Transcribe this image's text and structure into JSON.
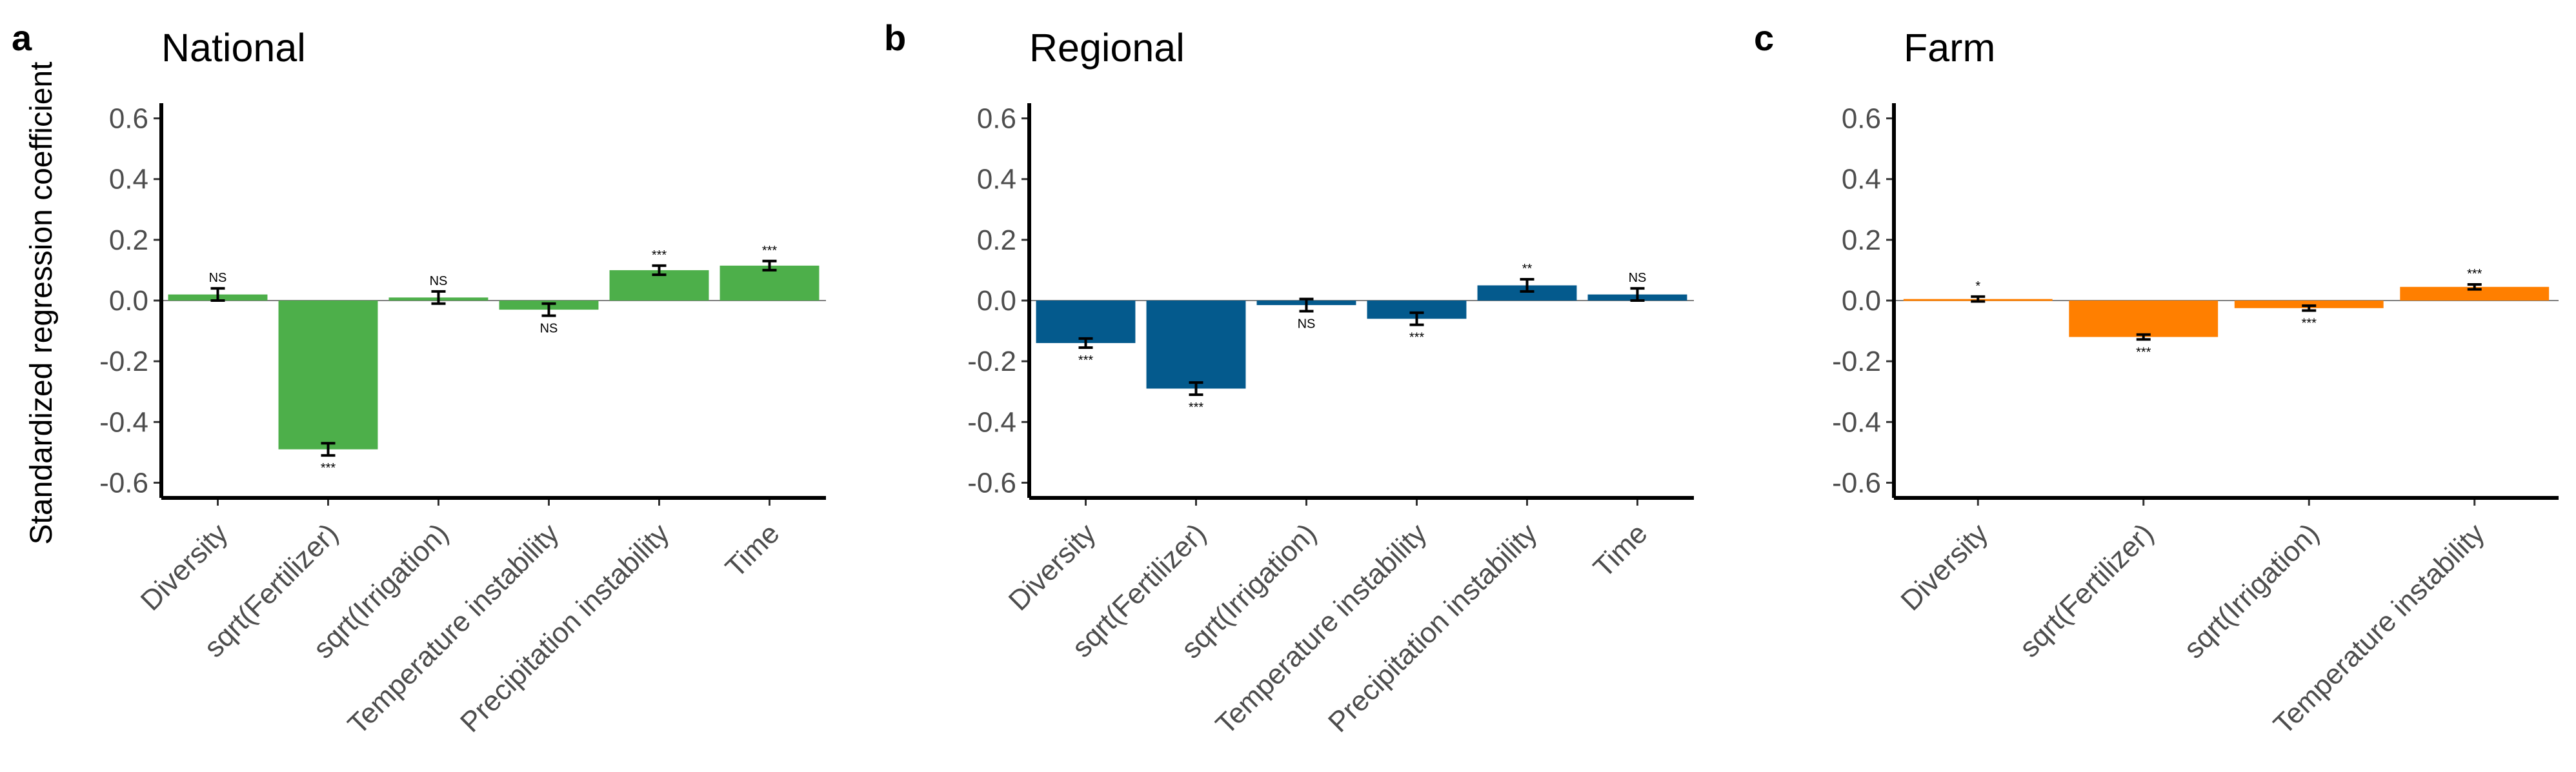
{
  "figure": {
    "ylabel": "Standardized regression coefficient"
  },
  "colors": {
    "national": "#4daf4a",
    "regional": "#045a8d",
    "farm": "#ff7f00"
  },
  "chart_data": [
    {
      "type": "bar",
      "panel_letter": "a",
      "title": "National",
      "color": "#4daf4a",
      "categories": [
        "Diversity",
        "sqrt(Fertilizer)",
        "sqrt(Irrigation)",
        "Temperature instability",
        "Precipitation instability",
        "Time"
      ],
      "values": [
        0.02,
        -0.49,
        0.01,
        -0.03,
        0.1,
        0.115
      ],
      "errors": [
        0.02,
        0.02,
        0.02,
        0.02,
        0.015,
        0.015
      ],
      "significance": [
        "NS",
        "***",
        "NS",
        "NS",
        "***",
        "***"
      ],
      "ylim": [
        -0.65,
        0.65
      ],
      "yticks": [
        "-0.6",
        "-0.4",
        "-0.2",
        "0.0",
        "0.2",
        "0.4",
        "0.6"
      ],
      "ytick_values": [
        -0.6,
        -0.4,
        -0.2,
        0.0,
        0.2,
        0.4,
        0.6
      ]
    },
    {
      "type": "bar",
      "panel_letter": "b",
      "title": "Regional",
      "color": "#045a8d",
      "categories": [
        "Diversity",
        "sqrt(Fertilizer)",
        "sqrt(Irrigation)",
        "Temperature instability",
        "Precipitation instability",
        "Time"
      ],
      "values": [
        -0.14,
        -0.29,
        -0.015,
        -0.06,
        0.05,
        0.02
      ],
      "errors": [
        0.015,
        0.02,
        0.02,
        0.02,
        0.02,
        0.02
      ],
      "significance": [
        "***",
        "***",
        "NS",
        "***",
        "**",
        "NS"
      ],
      "ylim": [
        -0.65,
        0.65
      ],
      "yticks": [
        "-0.6",
        "-0.4",
        "-0.2",
        "0.0",
        "0.2",
        "0.4",
        "0.6"
      ],
      "ytick_values": [
        -0.6,
        -0.4,
        -0.2,
        0.0,
        0.2,
        0.4,
        0.6
      ]
    },
    {
      "type": "bar",
      "panel_letter": "c",
      "title": "Farm",
      "color": "#ff7f00",
      "categories": [
        "Diversity",
        "sqrt(Fertilizer)",
        "sqrt(Irrigation)",
        "Temperature instability"
      ],
      "values": [
        0.005,
        -0.12,
        -0.025,
        0.045
      ],
      "errors": [
        0.008,
        0.008,
        0.008,
        0.008
      ],
      "significance": [
        "*",
        "***",
        "***",
        "***"
      ],
      "ylim": [
        -0.65,
        0.65
      ],
      "yticks": [
        "-0.6",
        "-0.4",
        "-0.2",
        "0.0",
        "0.2",
        "0.4",
        "0.6"
      ],
      "ytick_values": [
        -0.6,
        -0.4,
        -0.2,
        0.0,
        0.2,
        0.4,
        0.6
      ]
    }
  ]
}
